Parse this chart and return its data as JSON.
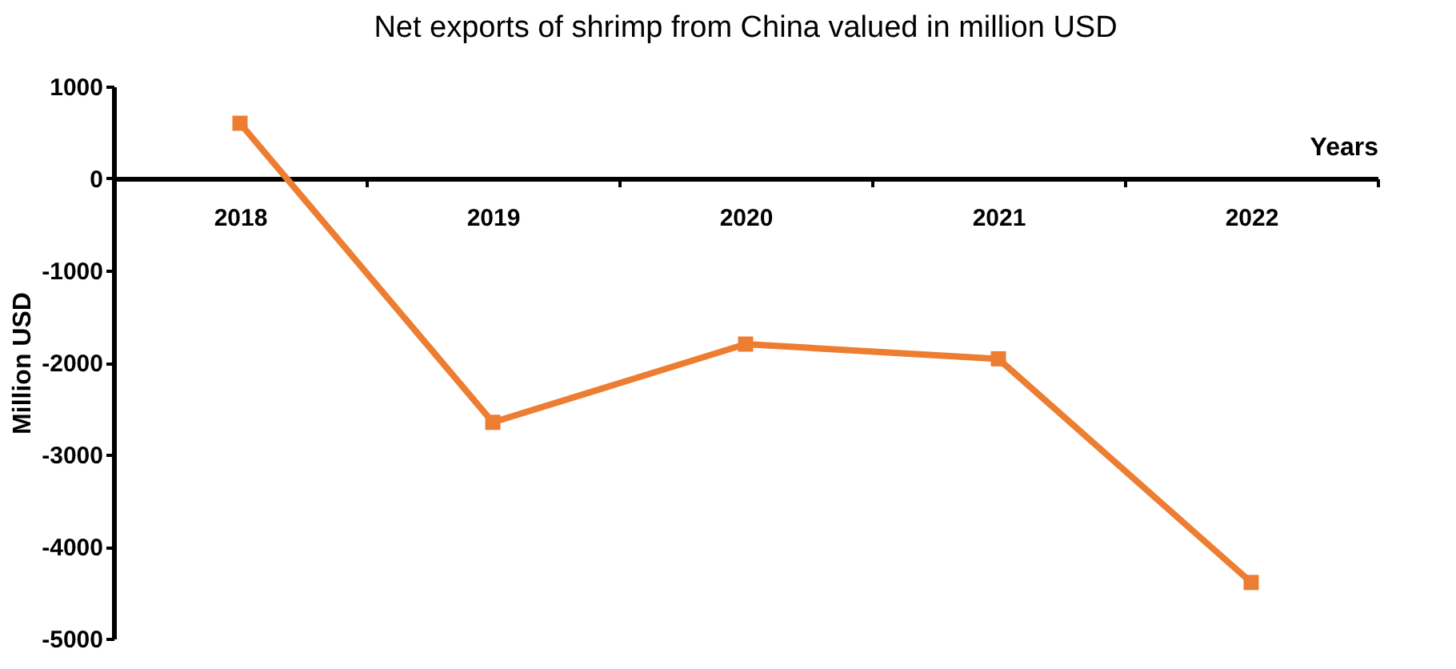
{
  "chart_data": {
    "type": "line",
    "title": "Net exports of shrimp from China valued in million USD",
    "xlabel": "Years",
    "ylabel": "Million USD",
    "categories": [
      "2018",
      "2019",
      "2020",
      "2021",
      "2022"
    ],
    "series": [
      {
        "color": "#ed7d31",
        "values": [
          600,
          -2650,
          -1800,
          -1960,
          -4390
        ]
      }
    ],
    "ylim": [
      -5000,
      1000
    ],
    "yticks": [
      -5000,
      -4000,
      -3000,
      -2000,
      -1000,
      0,
      1000
    ],
    "grid": false,
    "legend": false,
    "marker": "square",
    "line_style": "solid"
  }
}
